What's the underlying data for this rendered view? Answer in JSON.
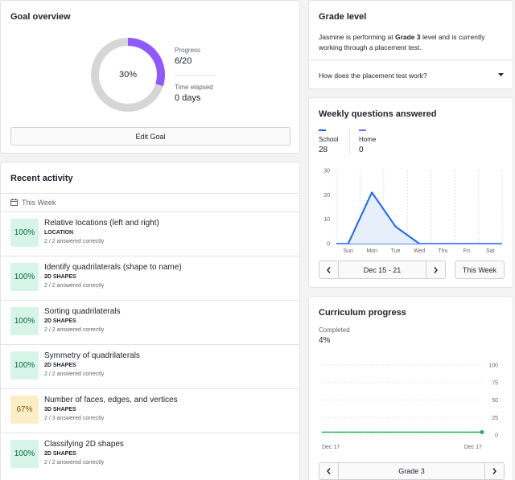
{
  "goal": {
    "title": "Goal overview",
    "percent_label": "30%",
    "progress_fraction": 0.3,
    "progress_label": "Progress",
    "progress_value": "6/20",
    "time_label": "Time elapsed",
    "time_value": "0 days",
    "edit_button": "Edit Goal"
  },
  "recent": {
    "title": "Recent activity",
    "period": "This Week",
    "items": [
      {
        "score": "100%",
        "title": "Relative locations (left and right)",
        "category": "LOCATION",
        "result": "2 / 2 answered correctly",
        "status": "green"
      },
      {
        "score": "100%",
        "title": "Identify quadrilaterals (shape to name)",
        "category": "2D SHAPES",
        "result": "2 / 2 answered correctly",
        "status": "green"
      },
      {
        "score": "100%",
        "title": "Sorting quadrilaterals",
        "category": "2D SHAPES",
        "result": "2 / 2 answered correctly",
        "status": "green"
      },
      {
        "score": "100%",
        "title": "Symmetry of quadrilaterals",
        "category": "2D SHAPES",
        "result": "2 / 2 answered correctly",
        "status": "green"
      },
      {
        "score": "67%",
        "title": "Number of faces, edges, and vertices",
        "category": "3D SHAPES",
        "result": "2 / 3 answered correctly",
        "status": "yellow"
      },
      {
        "score": "100%",
        "title": "Classifying 2D shapes",
        "category": "2D SHAPES",
        "result": "2 / 2 answered correctly",
        "status": "green"
      }
    ]
  },
  "grade": {
    "title": "Grade level",
    "desc_before": "Jasmine is performing at ",
    "desc_bold": "Grade 3",
    "desc_after": " level and is currently working through a placement test.",
    "faq": "How does the placement test work?"
  },
  "weekly": {
    "title": "Weekly questions answered",
    "school_label": "School",
    "school_value": "28",
    "home_label": "Home",
    "home_value": "0",
    "date_range": "Dec 15 - 21",
    "this_week_button": "This Week",
    "colors": {
      "school": "#1865f2",
      "home": "#9059ff"
    }
  },
  "curriculum": {
    "title": "Curriculum progress",
    "completed_label": "Completed",
    "completed_value": "4%",
    "grade_nav": "Grade 3",
    "colors": {
      "line": "#1fab54"
    }
  },
  "chart_data": [
    {
      "type": "area",
      "categories": [
        "Sun",
        "Mon",
        "Tue",
        "Wed",
        "Thu",
        "Fri",
        "Sat"
      ],
      "series": [
        {
          "name": "School",
          "values": [
            0,
            21,
            7,
            0,
            0,
            0,
            0
          ],
          "x_offset": [
            0,
            0,
            0,
            0,
            null,
            null,
            null
          ]
        },
        {
          "name": "Home",
          "values": [
            0,
            0,
            0,
            0,
            0,
            0,
            0
          ]
        }
      ],
      "yticks": [
        0,
        10,
        20,
        30
      ],
      "ylim": [
        0,
        30
      ],
      "grid": "vertical-dashed"
    },
    {
      "type": "line",
      "x_labels": [
        "Dec 17",
        "Dec 17"
      ],
      "values": [
        4
      ],
      "yticks": [
        0,
        25,
        50,
        75,
        100
      ],
      "ylim": [
        0,
        100
      ],
      "grid": "horizontal-dotted",
      "yaxis_side": "right"
    }
  ]
}
